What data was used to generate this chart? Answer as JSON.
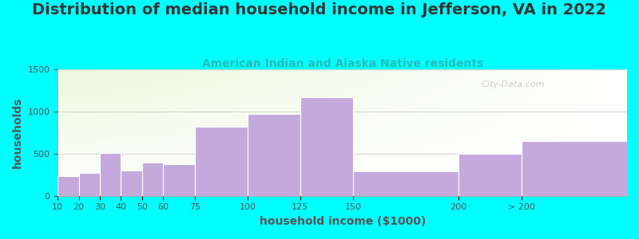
{
  "title": "Distribution of median household income in Jefferson, VA in 2022",
  "subtitle": "American Indian and Alaska Native residents",
  "xlabel": "household income ($1000)",
  "ylabel": "households",
  "background_outer": "#00FFFF",
  "bar_color": "#C4AADC",
  "bar_edge_color": "#FFFFFF",
  "title_color": "#333333",
  "subtitle_color": "#2ABCBC",
  "axis_label_color": "#555555",
  "tick_color": "#555555",
  "watermark_text": "City-Data.com",
  "watermark_color": "#BBBBBB",
  "bar_left_edges": [
    10,
    20,
    30,
    40,
    50,
    60,
    75,
    100,
    125,
    150,
    200,
    230
  ],
  "bar_widths": [
    10,
    10,
    10,
    10,
    10,
    15,
    25,
    25,
    25,
    50,
    30,
    50
  ],
  "values": [
    230,
    270,
    510,
    300,
    390,
    380,
    820,
    970,
    1165,
    295,
    500,
    650
  ],
  "xtick_positions": [
    10,
    20,
    30,
    40,
    50,
    60,
    75,
    100,
    125,
    150,
    200,
    230
  ],
  "xtick_labels": [
    "10",
    "20",
    "30",
    "40",
    "50",
    "60",
    "75",
    "100",
    "125",
    "150",
    "200",
    "> 200"
  ],
  "xlim": [
    10,
    280
  ],
  "ylim": [
    0,
    1500
  ],
  "yticks": [
    0,
    500,
    1000,
    1500
  ],
  "title_fontsize": 14,
  "subtitle_fontsize": 10,
  "axis_label_fontsize": 10,
  "tick_fontsize": 8
}
